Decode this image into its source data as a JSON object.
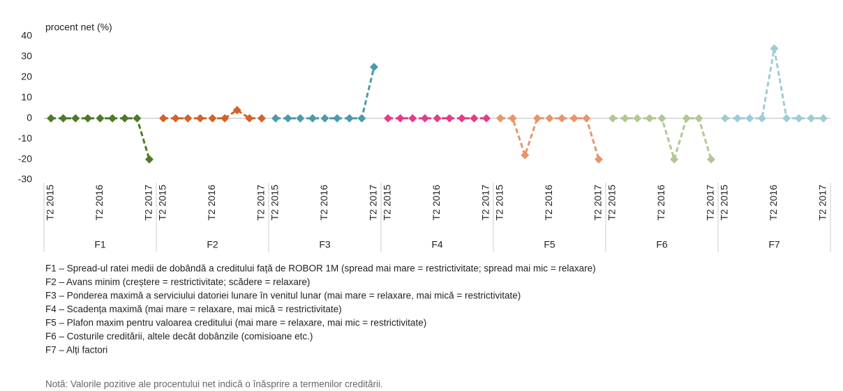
{
  "chart_data": {
    "type": "line",
    "y_label": "procent net (%)",
    "categories": [
      "T2 2015",
      null,
      null,
      null,
      "T2 2016",
      null,
      null,
      null,
      "T2 2017"
    ],
    "series": [
      {
        "name": "F1",
        "color": "#4e7a28",
        "values": [
          0,
          0,
          0,
          0,
          0,
          0,
          0,
          0,
          -20
        ]
      },
      {
        "name": "F2",
        "color": "#d4622a",
        "values": [
          0,
          0,
          0,
          0,
          0,
          0,
          4,
          0,
          0
        ]
      },
      {
        "name": "F3",
        "color": "#4a9aa8",
        "values": [
          0,
          0,
          0,
          0,
          0,
          0,
          0,
          0,
          25
        ]
      },
      {
        "name": "F4",
        "color": "#e23c8a",
        "values": [
          0,
          0,
          0,
          0,
          0,
          0,
          0,
          0,
          0
        ]
      },
      {
        "name": "F5",
        "color": "#e8956a",
        "values": [
          0,
          0,
          -18,
          0,
          0,
          0,
          0,
          0,
          -20
        ]
      },
      {
        "name": "F6",
        "color": "#b1c794",
        "values": [
          0,
          0,
          0,
          0,
          0,
          -20,
          0,
          0,
          -20
        ]
      },
      {
        "name": "F7",
        "color": "#9fcbd6",
        "values": [
          0,
          0,
          0,
          0,
          34,
          0,
          0,
          0,
          0
        ]
      }
    ],
    "ylim": [
      -30,
      40
    ],
    "yticks": [
      -30,
      -20,
      -10,
      0,
      10,
      20,
      30,
      40
    ],
    "grid": false,
    "notes": [
      "F1 – Spread-ul ratei medii de dobândă a creditului față de ROBOR 1M (spread mai mare = restrictivitate; spread mai mic = relaxare)",
      "F2 – Avans minim (creștere = restrictivitate; scădere = relaxare)",
      "F3 – Ponderea maximă a serviciului datoriei lunare în venitul lunar (mai mare = relaxare, mai mică = restrictivitate)",
      "F4 – Scadența maximă (mai mare = relaxare, mai mică = restrictivitate)",
      "F5 – Plafon maxim pentru valoarea creditului (mai mare = relaxare, mai mic = restrictivitate)",
      "F6 – Costurile creditării, altele decât dobânzile (comisioane etc.)",
      "F7 – Alți factori"
    ],
    "footnote": "Notă: Valorile pozitive ale procentului net indică o înăsprire a termenilor creditării."
  }
}
